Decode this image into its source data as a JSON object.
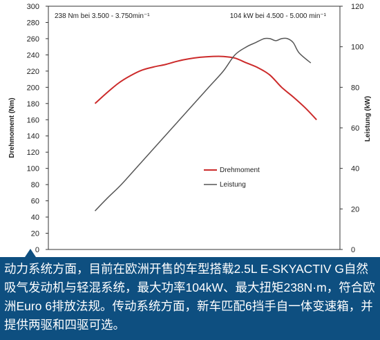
{
  "chart_data": {
    "type": "line",
    "title": "",
    "xlabel": "",
    "y_left_label": "Drehmoment (Nm)",
    "y_right_label": "Leistung (kW)",
    "y_left_lim": [
      0,
      300
    ],
    "y_left_ticks": [
      "0",
      "20",
      "40",
      "60",
      "80",
      "100",
      "120",
      "140",
      "160",
      "180",
      "200",
      "220",
      "240",
      "260",
      "280",
      "300"
    ],
    "y_right_lim": [
      0,
      120
    ],
    "y_right_ticks": [
      "0",
      "20",
      "40",
      "60",
      "80",
      "100",
      "120"
    ],
    "x_lim": [
      0,
      1
    ],
    "grid": false,
    "legend_position": "center-right",
    "annotation_left": "238 Nm bei 3.500 - 3.750min⁻¹",
    "annotation_right": "104 kW bei 4.500 - 5.000 min⁻¹",
    "series": [
      {
        "name": "Drehmoment",
        "axis": "left",
        "color": "#cc2a2a",
        "x": [
          0.16,
          0.2,
          0.24,
          0.28,
          0.32,
          0.36,
          0.4,
          0.44,
          0.48,
          0.52,
          0.56,
          0.6,
          0.64,
          0.68,
          0.72,
          0.76,
          0.8,
          0.84,
          0.88,
          0.92
        ],
        "y": [
          180,
          193,
          205,
          214,
          221,
          225,
          228,
          232,
          235,
          237,
          238,
          238,
          236,
          230,
          224,
          215,
          200,
          188,
          175,
          160
        ]
      },
      {
        "name": "Leistung",
        "axis": "right",
        "color": "#555555",
        "x": [
          0.16,
          0.2,
          0.25,
          0.3,
          0.35,
          0.4,
          0.45,
          0.5,
          0.55,
          0.6,
          0.64,
          0.68,
          0.71,
          0.74,
          0.76,
          0.78,
          0.8,
          0.82,
          0.84,
          0.86,
          0.9
        ],
        "y": [
          19,
          25,
          32,
          40,
          48,
          56,
          64,
          72,
          80,
          88,
          96,
          100,
          102,
          104,
          104,
          103,
          104,
          104,
          102,
          97,
          92
        ]
      }
    ]
  },
  "caption": {
    "text": "动力系统方面，目前在欧洲开售的车型搭载2.5L E-SKYACTIV G自然吸气发动机与轻混系统，最大功率104kW、最大扭矩238N·m，符合欧洲Euro 6排放法规。传动系统方面，新车匹配6挡手自一体变速箱，并提供两驱和四驱可选。"
  }
}
